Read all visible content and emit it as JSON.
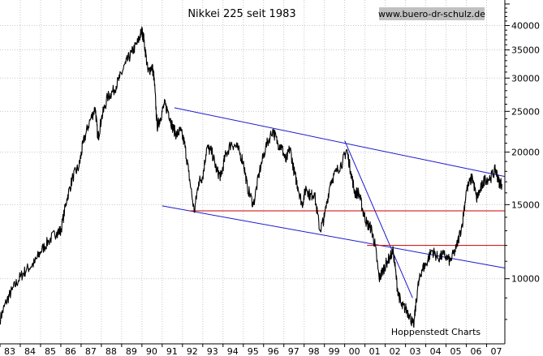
{
  "chart_data": {
    "type": "line",
    "title": "Nikkei 225 seit 1983",
    "source_badge": "www.buero-dr-schulz.de",
    "credit": "Hoppenstedt Charts",
    "x_tick_labels": [
      "83",
      "84",
      "85",
      "86",
      "87",
      "88",
      "89",
      "90",
      "91",
      "92",
      "93",
      "94",
      "95",
      "96",
      "97",
      "98",
      "99",
      "00",
      "01",
      "02",
      "03",
      "04",
      "05",
      "06",
      "07"
    ],
    "y_scale": "log",
    "y_ticks": [
      10000,
      15000,
      20000,
      25000,
      30000,
      35000,
      40000
    ],
    "y_tick_labels": [
      "10000",
      "15000",
      "20000",
      "25000",
      "30000",
      "35000",
      "40000"
    ],
    "xlim": [
      1983.0,
      2007.9
    ],
    "ylim": [
      7000,
      46000
    ],
    "grid": true,
    "colors": {
      "price": "#000000",
      "trend_channel": "#1a1acc",
      "support_lines": "#cc0000",
      "badge_bg": "#c0c0c0",
      "grid": "#c8c8c8"
    },
    "series": [
      {
        "x": [
          1983.0,
          1983.3,
          1983.6,
          1984.0,
          1984.3,
          1984.7,
          1985.0,
          1985.4,
          1985.8,
          1986.0,
          1986.3,
          1986.6,
          1986.9,
          1987.1,
          1987.4,
          1987.7,
          1987.83,
          1988.0,
          1988.3,
          1988.6,
          1988.9,
          1989.2,
          1989.5,
          1989.8,
          1989.99,
          1990.1,
          1990.3,
          1990.5,
          1990.6,
          1990.75,
          1990.9,
          1991.1,
          1991.3,
          1991.5,
          1991.7,
          1991.9,
          1992.1,
          1992.3,
          1992.58,
          1992.8,
          1993.0,
          1993.2,
          1993.45,
          1993.7,
          1993.9,
          1994.1,
          1994.4,
          1994.7,
          1995.0,
          1995.2,
          1995.5,
          1995.8,
          1996.1,
          1996.45,
          1996.7,
          1996.9,
          1997.1,
          1997.3,
          1997.5,
          1997.7,
          1997.9,
          1998.1,
          1998.3,
          1998.5,
          1998.78,
          1999.0,
          1999.3,
          1999.6,
          1999.9,
          2000.1,
          2000.3,
          2000.5,
          2000.7,
          2000.9,
          2001.1,
          2001.3,
          2001.5,
          2001.7,
          2001.9,
          2002.1,
          2002.4,
          2002.6,
          2002.8,
          2003.0,
          2003.2,
          2003.4,
          2003.6,
          2003.8,
          2004.0,
          2004.3,
          2004.6,
          2004.9,
          2005.2,
          2005.5,
          2005.8,
          2006.0,
          2006.3,
          2006.5,
          2006.7,
          2006.9,
          2007.2,
          2007.45,
          2007.6,
          2007.75
        ],
        "y": [
          8000,
          8800,
          9400,
          10100,
          10500,
          10900,
          11600,
          12300,
          12900,
          13000,
          15500,
          17500,
          18500,
          21000,
          23500,
          25500,
          21500,
          24000,
          27000,
          28000,
          30000,
          32500,
          34500,
          36500,
          38900,
          37000,
          31000,
          32000,
          30000,
          23000,
          24000,
          26000,
          25000,
          23000,
          22000,
          22500,
          21000,
          18000,
          14400,
          17000,
          17500,
          20500,
          20000,
          18000,
          17500,
          19500,
          21000,
          20500,
          19000,
          16500,
          15000,
          18000,
          20500,
          22600,
          21000,
          20500,
          19000,
          20500,
          18000,
          16500,
          15000,
          16500,
          15700,
          16000,
          13000,
          14000,
          17000,
          18000,
          19000,
          20300,
          18000,
          16000,
          16000,
          14500,
          13500,
          13200,
          12000,
          10000,
          10500,
          11000,
          11600,
          9500,
          8600,
          8500,
          8200,
          7700,
          9500,
          10500,
          10800,
          11700,
          11200,
          11400,
          11000,
          11800,
          13500,
          16200,
          17500,
          15500,
          16300,
          17200,
          17400,
          18200,
          17000,
          16800
        ]
      }
    ],
    "trend_lines": [
      {
        "name": "channel-upper",
        "x": [
          1991.6,
          2007.9
        ],
        "y": [
          25500,
          17500
        ]
      },
      {
        "name": "channel-lower",
        "x": [
          1991.0,
          2007.9
        ],
        "y": [
          14900,
          10600
        ]
      },
      {
        "name": "decline-2000-2003",
        "x": [
          2000.0,
          2003.35
        ],
        "y": [
          21300,
          9000
        ]
      },
      {
        "name": "support-14500",
        "x": [
          1992.3,
          2007.9
        ],
        "y": [
          14500,
          14500
        ]
      },
      {
        "name": "support-12000",
        "x": [
          2001.1,
          2007.9
        ],
        "y": [
          12000,
          12000
        ]
      }
    ]
  }
}
